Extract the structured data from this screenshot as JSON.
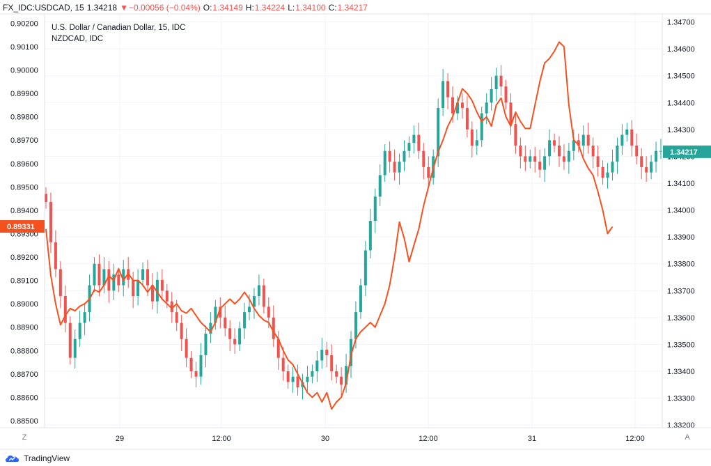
{
  "header": {
    "symbol": "FX_IDC:USDCAD, 15",
    "last": "1.34218",
    "arrow": "▼",
    "change": "−0.00056 (−0.04%)",
    "open_label": "O:",
    "open": "1.34149",
    "high_label": "H:",
    "high": "1.34224",
    "low_label": "L:",
    "low": "1.34100",
    "close_label": "C:",
    "close": "1.34217"
  },
  "legend": {
    "main_series": "U.S. Dollar / Canadian Dollar, 15, IDC",
    "compare_series": "NZDCAD, IDC"
  },
  "colors": {
    "up": "#26a69a",
    "down": "#ef5350",
    "compare": "#f4511e",
    "grid": "#f0f3fa",
    "border": "#e0e3eb"
  },
  "chart_data": {
    "type": "line",
    "x_ticks": [
      "29",
      "12:00",
      "30",
      "12:00",
      "31",
      "12:00"
    ],
    "left_axis": {
      "ticks": [
        "0.90200",
        "0.90100",
        "0.90000",
        "0.89900",
        "0.89800",
        "0.89700",
        "0.89600",
        "0.89500",
        "0.89400",
        "0.89300",
        "0.89200",
        "0.89100",
        "0.89000",
        "0.88900",
        "0.88800",
        "0.88700",
        "0.88600",
        "0.88500"
      ],
      "range": [
        0.8847,
        0.9024
      ],
      "last_label": "0.89331"
    },
    "right_axis": {
      "ticks": [
        "1.34700",
        "1.34600",
        "1.34500",
        "1.34400",
        "1.34300",
        "1.34200",
        "1.34100",
        "1.34000",
        "1.33900",
        "1.33800",
        "1.33700",
        "1.33600",
        "1.33500",
        "1.33400",
        "1.33300",
        "1.33200"
      ],
      "range": [
        1.3319,
        1.3473
      ],
      "last_label": "1.34217"
    },
    "grid": true,
    "series": [
      {
        "name": "U.S. Dollar / Canadian Dollar, 15, IDC",
        "kind": "candlestick",
        "axis": "right",
        "points": [
          [
            0,
            1.3403
          ],
          [
            1,
            1.3388
          ],
          [
            2,
            1.3378
          ],
          [
            3,
            1.3368
          ],
          [
            4,
            1.3358
          ],
          [
            5,
            1.3345
          ],
          [
            6,
            1.3352
          ],
          [
            7,
            1.3358
          ],
          [
            8,
            1.3362
          ],
          [
            9,
            1.3372
          ],
          [
            10,
            1.338
          ],
          [
            11,
            1.3372
          ],
          [
            12,
            1.3378
          ],
          [
            13,
            1.337
          ],
          [
            14,
            1.3376
          ],
          [
            15,
            1.3372
          ],
          [
            16,
            1.3378
          ],
          [
            17,
            1.3374
          ],
          [
            18,
            1.3368
          ],
          [
            19,
            1.3374
          ],
          [
            20,
            1.3378
          ],
          [
            21,
            1.3372
          ],
          [
            22,
            1.3366
          ],
          [
            23,
            1.3374
          ],
          [
            24,
            1.337
          ],
          [
            25,
            1.3366
          ],
          [
            26,
            1.3362
          ],
          [
            27,
            1.3358
          ],
          [
            28,
            1.3352
          ],
          [
            29,
            1.3345
          ],
          [
            30,
            1.334
          ],
          [
            31,
            1.3338
          ],
          [
            32,
            1.3346
          ],
          [
            33,
            1.3354
          ],
          [
            34,
            1.3358
          ],
          [
            35,
            1.3364
          ],
          [
            36,
            1.336
          ],
          [
            37,
            1.3356
          ],
          [
            38,
            1.3352
          ],
          [
            39,
            1.335
          ],
          [
            40,
            1.3356
          ],
          [
            41,
            1.3362
          ],
          [
            42,
            1.3364
          ],
          [
            43,
            1.3368
          ],
          [
            44,
            1.3372
          ],
          [
            45,
            1.3364
          ],
          [
            46,
            1.336
          ],
          [
            47,
            1.3352
          ],
          [
            48,
            1.3345
          ],
          [
            49,
            1.334
          ],
          [
            50,
            1.3336
          ],
          [
            51,
            1.3338
          ],
          [
            52,
            1.3334
          ],
          [
            53,
            1.3336
          ],
          [
            54,
            1.3338
          ],
          [
            55,
            1.334
          ],
          [
            56,
            1.3344
          ],
          [
            57,
            1.3348
          ],
          [
            58,
            1.3346
          ],
          [
            59,
            1.334
          ],
          [
            60,
            1.3338
          ],
          [
            61,
            1.3335
          ],
          [
            62,
            1.3342
          ],
          [
            63,
            1.3352
          ],
          [
            64,
            1.3362
          ],
          [
            65,
            1.3372
          ],
          [
            66,
            1.3385
          ],
          [
            67,
            1.3396
          ],
          [
            68,
            1.3405
          ],
          [
            69,
            1.3413
          ],
          [
            70,
            1.3422
          ],
          [
            71,
            1.3418
          ],
          [
            72,
            1.3414
          ],
          [
            73,
            1.3418
          ],
          [
            74,
            1.3422
          ],
          [
            75,
            1.3425
          ],
          [
            76,
            1.3428
          ],
          [
            77,
            1.3422
          ],
          [
            78,
            1.3416
          ],
          [
            79,
            1.3412
          ],
          [
            80,
            1.342
          ],
          [
            81,
            1.3438
          ],
          [
            82,
            1.3448
          ],
          [
            83,
            1.3442
          ],
          [
            84,
            1.3436
          ],
          [
            85,
            1.344
          ],
          [
            86,
            1.3438
          ],
          [
            87,
            1.343
          ],
          [
            88,
            1.3424
          ],
          [
            89,
            1.3426
          ],
          [
            90,
            1.3436
          ],
          [
            91,
            1.344
          ],
          [
            92,
            1.3445
          ],
          [
            93,
            1.345
          ],
          [
            94,
            1.3446
          ],
          [
            95,
            1.344
          ],
          [
            96,
            1.3432
          ],
          [
            97,
            1.3424
          ],
          [
            98,
            1.342
          ],
          [
            99,
            1.3418
          ],
          [
            100,
            1.342
          ],
          [
            101,
            1.3418
          ],
          [
            102,
            1.3415
          ],
          [
            103,
            1.342
          ],
          [
            104,
            1.3426
          ],
          [
            105,
            1.3424
          ],
          [
            106,
            1.342
          ],
          [
            107,
            1.3418
          ],
          [
            108,
            1.3422
          ],
          [
            109,
            1.3426
          ],
          [
            110,
            1.3424
          ],
          [
            111,
            1.3428
          ],
          [
            112,
            1.3424
          ],
          [
            113,
            1.342
          ],
          [
            114,
            1.3416
          ],
          [
            115,
            1.3412
          ],
          [
            116,
            1.3414
          ],
          [
            117,
            1.3418
          ],
          [
            118,
            1.3424
          ],
          [
            119,
            1.3428
          ],
          [
            120,
            1.343
          ],
          [
            121,
            1.3424
          ],
          [
            122,
            1.342
          ],
          [
            123,
            1.3416
          ],
          [
            124,
            1.3414
          ],
          [
            125,
            1.3418
          ],
          [
            126,
            1.3422
          ],
          [
            127,
            1.3422
          ]
        ]
      },
      {
        "name": "NZDCAD, IDC",
        "kind": "line",
        "axis": "left",
        "points": [
          [
            0,
            0.8932
          ],
          [
            1,
            0.8912
          ],
          [
            2,
            0.89
          ],
          [
            3,
            0.8891
          ],
          [
            4,
            0.8895
          ],
          [
            5,
            0.8898
          ],
          [
            6,
            0.8897
          ],
          [
            7,
            0.8899
          ],
          [
            8,
            0.89
          ],
          [
            9,
            0.8902
          ],
          [
            10,
            0.8906
          ],
          [
            11,
            0.8905
          ],
          [
            12,
            0.8908
          ],
          [
            13,
            0.8912
          ],
          [
            14,
            0.891
          ],
          [
            15,
            0.8915
          ],
          [
            16,
            0.891
          ],
          [
            17,
            0.8913
          ],
          [
            18,
            0.891
          ],
          [
            19,
            0.891
          ],
          [
            20,
            0.8908
          ],
          [
            21,
            0.8905
          ],
          [
            22,
            0.8908
          ],
          [
            23,
            0.8905
          ],
          [
            24,
            0.8902
          ],
          [
            25,
            0.89
          ],
          [
            26,
            0.8898
          ],
          [
            27,
            0.89
          ],
          [
            28,
            0.8897
          ],
          [
            29,
            0.8896
          ],
          [
            30,
            0.8898
          ],
          [
            31,
            0.8895
          ],
          [
            32,
            0.8892
          ],
          [
            33,
            0.889
          ],
          [
            34,
            0.8888
          ],
          [
            35,
            0.8892
          ],
          [
            36,
            0.8898
          ],
          [
            37,
            0.89
          ],
          [
            38,
            0.8902
          ],
          [
            39,
            0.89
          ],
          [
            40,
            0.8902
          ],
          [
            41,
            0.8905
          ],
          [
            42,
            0.8902
          ],
          [
            43,
            0.8898
          ],
          [
            44,
            0.8895
          ],
          [
            45,
            0.8893
          ],
          [
            46,
            0.8892
          ],
          [
            47,
            0.8888
          ],
          [
            48,
            0.8885
          ],
          [
            49,
            0.888
          ],
          [
            50,
            0.8876
          ],
          [
            51,
            0.8874
          ],
          [
            52,
            0.887
          ],
          [
            53,
            0.8866
          ],
          [
            54,
            0.8862
          ],
          [
            55,
            0.886
          ],
          [
            56,
            0.8862
          ],
          [
            57,
            0.8858
          ],
          [
            58,
            0.8862
          ],
          [
            59,
            0.8855
          ],
          [
            60,
            0.8858
          ],
          [
            61,
            0.886
          ],
          [
            62,
            0.8866
          ],
          [
            63,
            0.8878
          ],
          [
            64,
            0.8885
          ],
          [
            65,
            0.8888
          ],
          [
            66,
            0.889
          ],
          [
            67,
            0.8892
          ],
          [
            68,
            0.889
          ],
          [
            69,
            0.8895
          ],
          [
            70,
            0.89
          ],
          [
            71,
            0.8908
          ],
          [
            72,
            0.892
          ],
          [
            73,
            0.8935
          ],
          [
            74,
            0.8928
          ],
          [
            75,
            0.8918
          ],
          [
            76,
            0.8925
          ],
          [
            77,
            0.8932
          ],
          [
            78,
            0.8942
          ],
          [
            79,
            0.895
          ],
          [
            80,
            0.8958
          ],
          [
            81,
            0.8965
          ],
          [
            82,
            0.897
          ],
          [
            83,
            0.8976
          ],
          [
            84,
            0.898
          ],
          [
            85,
            0.8986
          ],
          [
            86,
            0.8992
          ],
          [
            87,
            0.899
          ],
          [
            88,
            0.8987
          ],
          [
            89,
            0.8982
          ],
          [
            90,
            0.8978
          ],
          [
            91,
            0.898
          ],
          [
            92,
            0.8976
          ],
          [
            93,
            0.8985
          ],
          [
            94,
            0.8988
          ],
          [
            95,
            0.898
          ],
          [
            96,
            0.8976
          ],
          [
            97,
            0.8982
          ],
          [
            98,
            0.8978
          ],
          [
            99,
            0.8975
          ],
          [
            100,
            0.8975
          ],
          [
            101,
            0.8985
          ],
          [
            102,
            0.8995
          ],
          [
            103,
            0.9003
          ],
          [
            104,
            0.9005
          ],
          [
            105,
            0.9008
          ],
          [
            106,
            0.9012
          ],
          [
            107,
            0.901
          ],
          [
            108,
            0.8985
          ],
          [
            109,
            0.897
          ],
          [
            110,
            0.8968
          ],
          [
            111,
            0.8962
          ],
          [
            112,
            0.8958
          ],
          [
            113,
            0.8955
          ],
          [
            114,
            0.8948
          ],
          [
            115,
            0.894
          ],
          [
            116,
            0.893
          ],
          [
            117,
            0.8933
          ]
        ]
      }
    ]
  },
  "footer": {
    "brand": "TradingView",
    "left_corner": "Z",
    "right_corner": "A"
  }
}
